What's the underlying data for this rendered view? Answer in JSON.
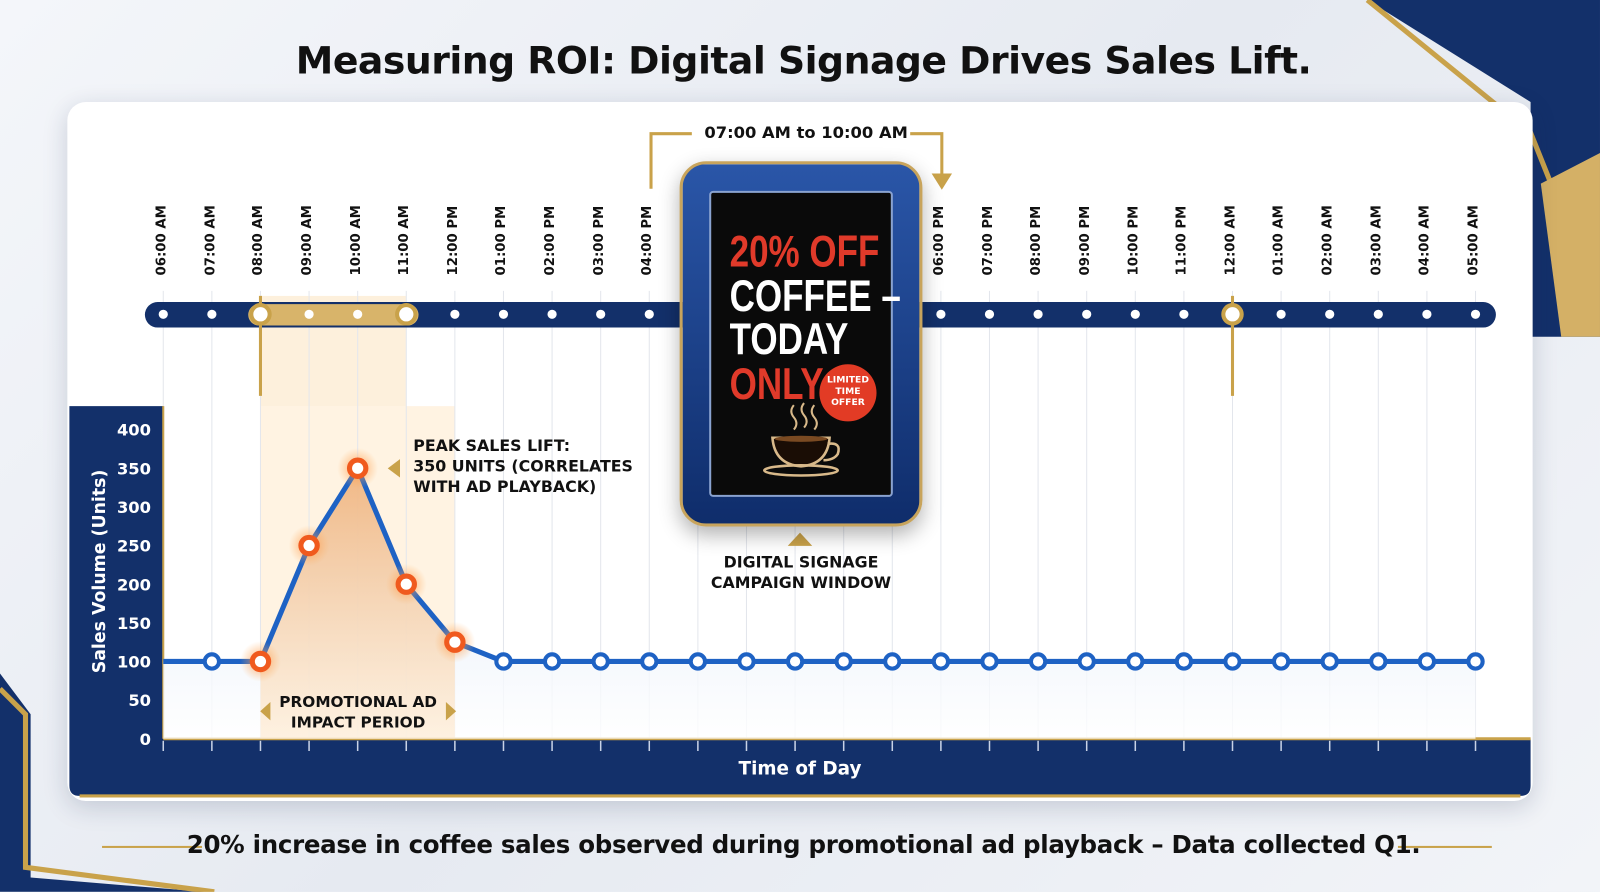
{
  "title": "Measuring ROI: Digital Signage Drives Sales Lift.",
  "footer": "20% increase in coffee sales observed during promotional ad playback – Data collected Q1.",
  "campaign": {
    "time_range": "07:00 AM to 10:00 AM",
    "label_line1": "DIGITAL SIGNAGE",
    "label_line2": "CAMPAIGN WINDOW"
  },
  "ad": {
    "line1": "20% OFF",
    "line2": "COFFEE –",
    "line3": "TODAY",
    "line4": "ONLY",
    "badge": [
      "LIMITED",
      "TIME",
      "OFFER"
    ],
    "icon": "coffee-cup-icon"
  },
  "colors": {
    "navy": "#13306a",
    "line": "#1e62c4",
    "highlight": "#f05a1e",
    "gold": "#c9a24a"
  },
  "chart_data": {
    "type": "line",
    "xlabel": "Time of Day",
    "ylabel": "Sales Volume (Units)",
    "ylim": [
      0,
      400
    ],
    "yticks": [
      0,
      50,
      100,
      150,
      200,
      250,
      300,
      350,
      400
    ],
    "x_labels": [
      "06:00 AM",
      "07:00 AM",
      "08:00 AM",
      "09:00 AM",
      "10:00 AM",
      "11:00 AM",
      "12:00 PM",
      "01:00 PM",
      "02:00 PM",
      "03:00 PM",
      "04:00 PM",
      null,
      null,
      null,
      null,
      null,
      "06:00 PM",
      "07:00 PM",
      "08:00 PM",
      "09:00 PM",
      "10:00 PM",
      "11:00 PM",
      "12:00 AM",
      "01:00 AM",
      "02:00 AM",
      "03:00 AM",
      "04:00 AM",
      "05:00 AM"
    ],
    "values": [
      100,
      100,
      100,
      250,
      350,
      200,
      125,
      100,
      100,
      100,
      100,
      100,
      100,
      100,
      100,
      100,
      100,
      100,
      100,
      100,
      100,
      100,
      100,
      100,
      100,
      100,
      100,
      100
    ],
    "highlighted_indices": [
      2,
      3,
      4,
      5,
      6
    ],
    "grid": true,
    "annotations": {
      "peak": [
        "PEAK SALES LIFT:",
        "350 UNITS (CORRELATES",
        "WITH AD PLAYBACK)"
      ],
      "period": [
        "PROMOTIONAL AD",
        "IMPACT PERIOD"
      ]
    }
  }
}
